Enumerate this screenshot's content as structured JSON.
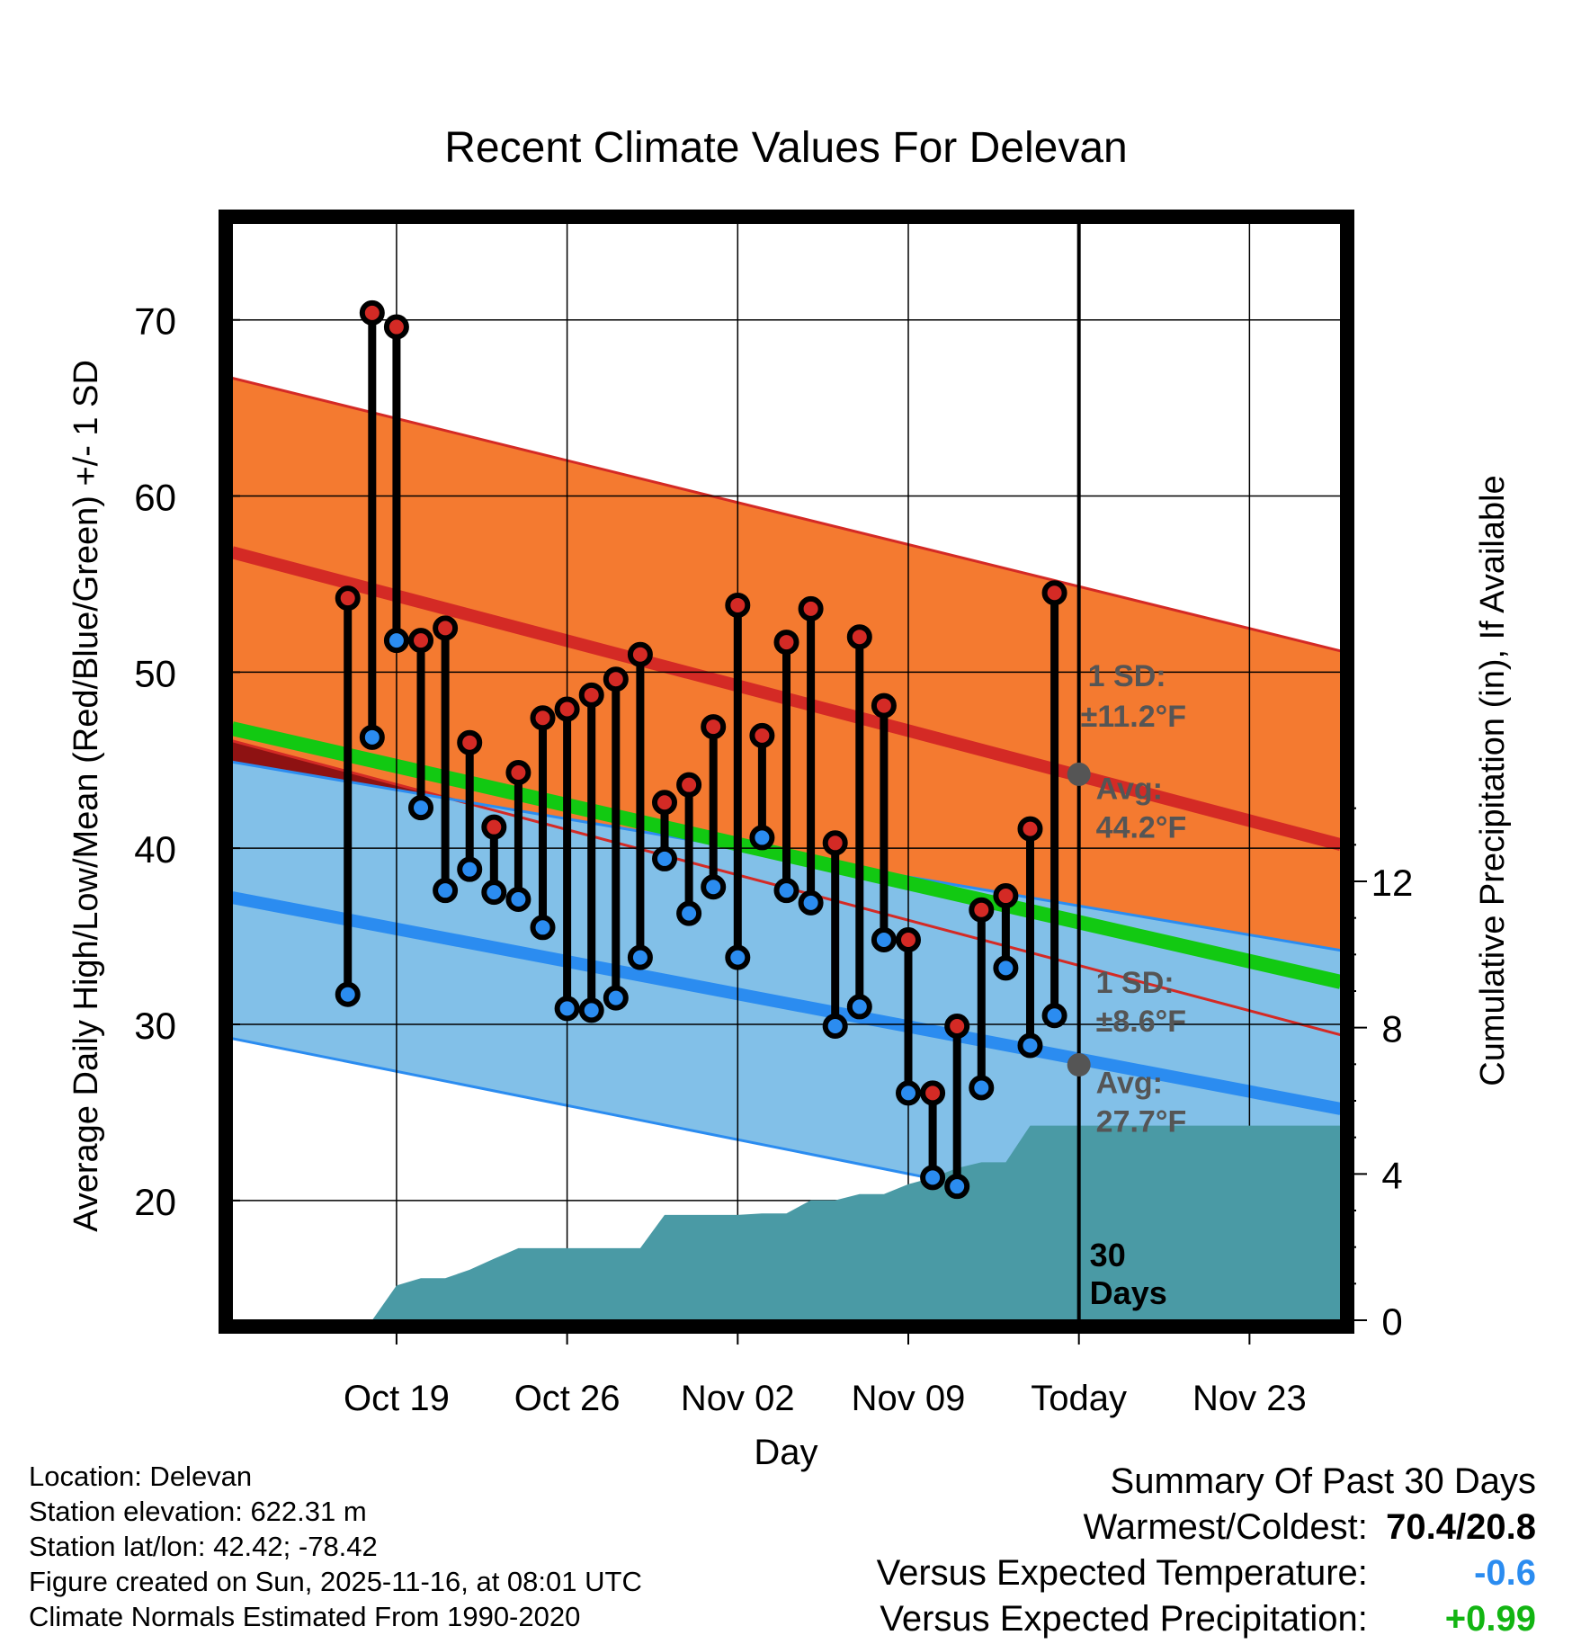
{
  "chart_data": {
    "type": "line",
    "title": "Recent Climate Values For Delevan",
    "xlabel": "Day",
    "ylabel": "Average Daily High/Low/Mean (Red/Blue/Green) +/- 1 SD",
    "y2label": "Cumulative Precipitation (in), If Available",
    "x_range_days": [
      -34.75,
      10.75
    ],
    "ylim": [
      13.2,
      75.5
    ],
    "y2lim": [
      0,
      30
    ],
    "x_ticks": [
      {
        "day": -28,
        "label": "Oct 19"
      },
      {
        "day": -21,
        "label": "Oct 26"
      },
      {
        "day": -14,
        "label": "Nov 02"
      },
      {
        "day": -7,
        "label": "Nov 09"
      },
      {
        "day": 0,
        "label": "Today"
      },
      {
        "day": 7,
        "label": "Nov 23"
      }
    ],
    "y_ticks": [
      20,
      30,
      40,
      50,
      60,
      70
    ],
    "y2_ticks": [
      0,
      4,
      8,
      12
    ],
    "normals": {
      "x": [
        -34.75,
        10.75
      ],
      "high_mean": [
        56.8,
        40.2
      ],
      "high_upper": [
        66.7,
        51.2
      ],
      "high_lower": [
        46.1,
        29.4
      ],
      "low_mean": [
        37.2,
        25.2
      ],
      "low_upper": [
        44.9,
        34.2
      ],
      "low_lower": [
        29.2,
        16.6
      ],
      "daily_mean": [
        46.8,
        32.4
      ]
    },
    "today_marker": {
      "label": "30 Days",
      "high_avg_label": "Avg:",
      "high_avg_value": "44.2°F",
      "high_sd_label": "1 SD:",
      "high_sd_value": "±11.2°F",
      "low_avg_label": "Avg:",
      "low_avg_value": "27.7°F",
      "low_sd_label": "1 SD:",
      "low_sd_value": "±8.6°F"
    },
    "series": [
      {
        "name": "Daily High",
        "color": "#d42a25",
        "x": [
          -30,
          -29,
          -28,
          -27,
          -26,
          -25,
          -24,
          -23,
          -22,
          -21,
          -20,
          -19,
          -18,
          -17,
          -16,
          -15,
          -14,
          -13,
          -12,
          -11,
          -10,
          -9,
          -8,
          -7,
          -6,
          -5,
          -4,
          -3,
          -2,
          -1
        ],
        "values": [
          54.2,
          70.4,
          69.6,
          51.8,
          52.5,
          46.0,
          41.2,
          44.3,
          47.4,
          47.9,
          48.7,
          49.6,
          51.0,
          42.6,
          43.6,
          46.9,
          53.8,
          46.4,
          51.7,
          53.6,
          40.3,
          52.0,
          48.1,
          34.8,
          26.1,
          29.9,
          36.5,
          37.3,
          41.1,
          54.5
        ]
      },
      {
        "name": "Daily Low",
        "color": "#2b8cf0",
        "x": [
          -30,
          -29,
          -28,
          -27,
          -26,
          -25,
          -24,
          -23,
          -22,
          -21,
          -20,
          -19,
          -18,
          -17,
          -16,
          -15,
          -14,
          -13,
          -12,
          -11,
          -10,
          -9,
          -8,
          -7,
          -6,
          -5,
          -4,
          -3,
          -2,
          -1
        ],
        "values": [
          31.7,
          46.3,
          51.8,
          42.3,
          37.6,
          38.8,
          37.5,
          37.1,
          35.5,
          30.9,
          30.8,
          31.5,
          33.8,
          39.4,
          36.3,
          37.8,
          33.8,
          40.6,
          37.6,
          36.9,
          29.9,
          31.0,
          34.8,
          26.1,
          21.3,
          20.8,
          26.4,
          33.2,
          28.8,
          30.5
        ]
      },
      {
        "name": "Cumulative Precipitation",
        "color": "#4a9aa5",
        "x": [
          -31,
          -30,
          -29,
          -28,
          -27,
          -26,
          -25,
          -24,
          -23,
          -22,
          -21,
          -20,
          -19,
          -18,
          -17,
          -16,
          -15,
          -14,
          -13,
          -12,
          -11,
          -10,
          -9,
          -8,
          -7,
          -6,
          -5,
          -4,
          -3,
          -2,
          -1,
          0
        ],
        "values": [
          0.0,
          0.0,
          0.0,
          0.95,
          1.15,
          1.15,
          1.38,
          1.68,
          1.97,
          1.97,
          1.97,
          1.97,
          1.97,
          1.97,
          2.88,
          2.88,
          2.88,
          2.88,
          2.92,
          2.92,
          3.28,
          3.28,
          3.45,
          3.45,
          3.72,
          3.9,
          4.16,
          4.32,
          4.32,
          5.32,
          5.32,
          5.32
        ]
      }
    ]
  },
  "info": {
    "location": "Location: Delevan",
    "elevation": "Station elevation: 622.31 m",
    "latlon": "Station lat/lon: 42.42; -78.42",
    "created": "Figure created on Sun, 2025-11-16, at 08:01 UTC",
    "normals": "Climate Normals Estimated From 1990-2020"
  },
  "summary": {
    "title": "Summary Of Past 30 Days",
    "warm_cold_label": "Warmest/Coldest:",
    "warm_cold_value": "70.4/20.8",
    "temp_label": "Versus Expected Temperature:",
    "temp_value": "-0.6",
    "temp_color": "#2b8cf0",
    "precip_label": "Versus Expected Precipitation:",
    "precip_value": "+0.99",
    "precip_color": "#12b512"
  }
}
